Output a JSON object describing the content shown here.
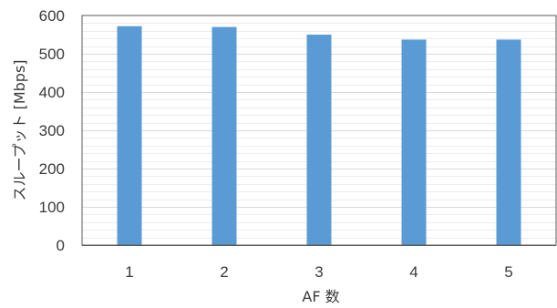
{
  "chart_data": {
    "type": "bar",
    "categories": [
      "1",
      "2",
      "3",
      "4",
      "5"
    ],
    "values": [
      572,
      570,
      550,
      537,
      537
    ],
    "xlabel": "AF 数",
    "ylabel": "スループット [Mbps]",
    "ylim": [
      0,
      600
    ],
    "yticks": [
      "0",
      "100",
      "200",
      "300",
      "400",
      "500",
      "600"
    ],
    "grid": true,
    "bar_color": "#5b9bd5"
  }
}
